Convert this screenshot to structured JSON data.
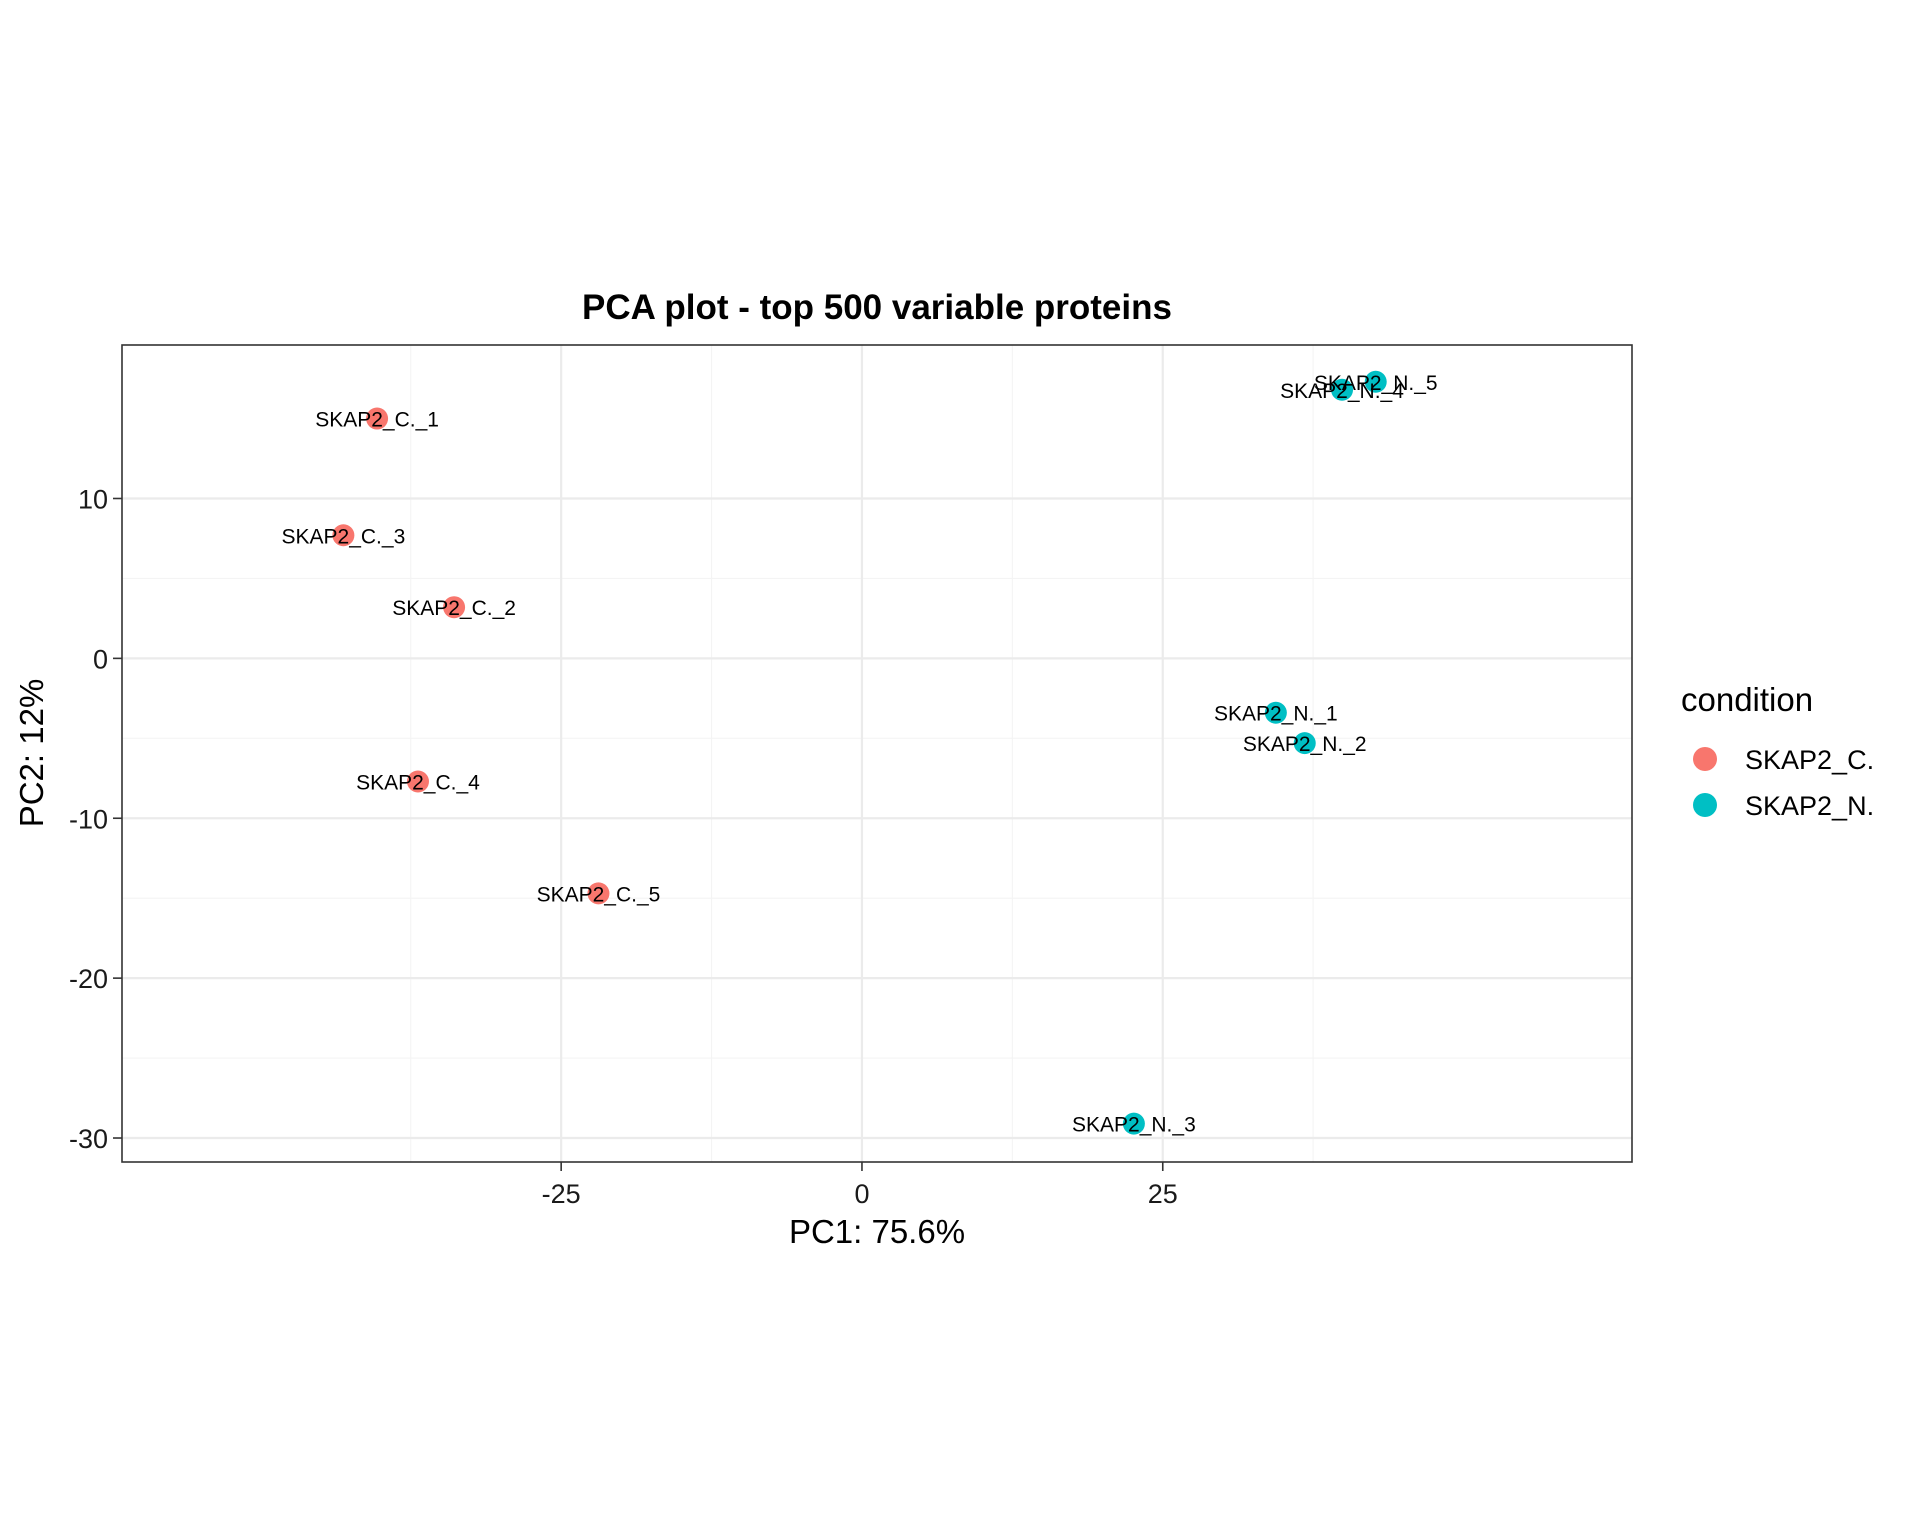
{
  "chart_data": {
    "type": "scatter",
    "title": "PCA plot - top 500 variable proteins",
    "xlabel": "PC1: 75.6%",
    "ylabel": "PC2: 12%",
    "xlim": [
      -61.5,
      64
    ],
    "ylim": [
      -31.5,
      19.6
    ],
    "x_ticks": [
      -25,
      0,
      25
    ],
    "x_tick_labels": [
      "-25",
      "0",
      "25"
    ],
    "x_minor": [
      -37.5,
      -12.5,
      12.5,
      37.5
    ],
    "y_ticks": [
      10,
      0,
      -10,
      -20,
      -30
    ],
    "y_tick_labels": [
      "10",
      "0",
      "-10",
      "-20",
      "-30"
    ],
    "y_minor": [
      5,
      -5,
      -15,
      -25
    ],
    "grid": true,
    "legend": {
      "title": "condition",
      "position": "right",
      "entries": [
        {
          "label": "SKAP2_C.",
          "color": "#F8766D"
        },
        {
          "label": "SKAP2_N.",
          "color": "#00BFC4"
        }
      ]
    },
    "series": [
      {
        "name": "SKAP2_C.",
        "color": "#F8766D",
        "points": [
          {
            "label": "SKAP2_C._1",
            "x": -40.3,
            "y": 15.0
          },
          {
            "label": "SKAP2_C._3",
            "x": -43.1,
            "y": 7.7
          },
          {
            "label": "SKAP2_C._2",
            "x": -33.9,
            "y": 3.2
          },
          {
            "label": "SKAP2_C._4",
            "x": -36.9,
            "y": -7.7
          },
          {
            "label": "SKAP2_C._5",
            "x": -21.9,
            "y": -14.7
          }
        ]
      },
      {
        "name": "SKAP2_N.",
        "color": "#00BFC4",
        "points": [
          {
            "label": "SKAP2_N._5",
            "x": 42.7,
            "y": 17.3
          },
          {
            "label": "SKAP2_N._4",
            "x": 39.9,
            "y": 16.8
          },
          {
            "label": "SKAP2_N._1",
            "x": 34.4,
            "y": -3.4
          },
          {
            "label": "SKAP2_N._2",
            "x": 36.8,
            "y": -5.3
          },
          {
            "label": "SKAP2_N._3",
            "x": 22.6,
            "y": -29.1
          }
        ]
      }
    ]
  }
}
